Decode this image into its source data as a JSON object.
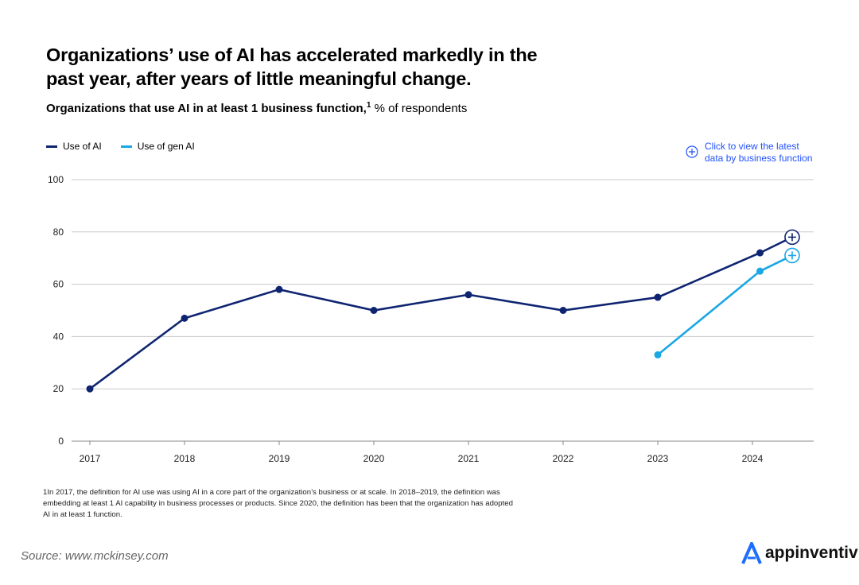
{
  "title": "Organizations’ use of AI has accelerated markedly in the past year, after years of little meaningful change.",
  "subtitle": {
    "bold": "Organizations that use AI in at least 1 business function,",
    "sup": "1",
    "rest": " % of respondents"
  },
  "cta": {
    "line1": "Click to view the latest",
    "line2": "data by business function",
    "icon": "plus-circle-icon",
    "color": "#2251ff"
  },
  "footnote": "1In 2017, the definition for AI use was using AI in a core part of the organization’s business or at scale. In 2018–2019, the definition was embedding at least 1 AI capability in business processes or products. Since 2020, the definition has been that the organization has adopted AI in at least 1 function.",
  "source": "Source: www.mckinsey.com",
  "brand": "appinventiv",
  "chart_data": {
    "type": "line",
    "ylim": [
      0,
      100
    ],
    "yticks": [
      0,
      20,
      40,
      60,
      80,
      100
    ],
    "xticks": [
      "2017",
      "2018",
      "2019",
      "2020",
      "2021",
      "2022",
      "2023",
      "2024"
    ],
    "grid": true,
    "legend": "top-left",
    "series": [
      {
        "name": "Use of AI",
        "color": "#0f2471",
        "x": [
          2017,
          2018,
          2019,
          2020,
          2021,
          2022,
          2023,
          2024.08,
          2024.42
        ],
        "values": [
          20,
          47,
          58,
          50,
          56,
          50,
          55,
          72,
          78
        ]
      },
      {
        "name": "Use of gen AI",
        "color": "#1aa7e6",
        "x": [
          2023,
          2024.08,
          2024.42
        ],
        "values": [
          33,
          65,
          71
        ]
      }
    ]
  }
}
